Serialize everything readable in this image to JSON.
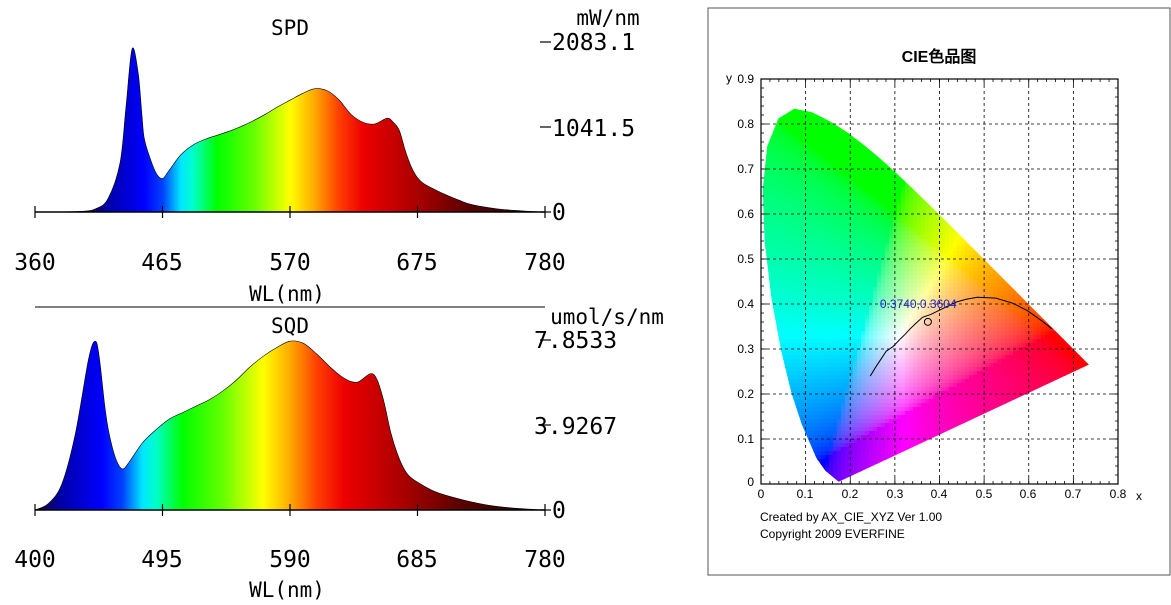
{
  "chart_data": [
    {
      "type": "area",
      "title": "SPD",
      "unit": "mW/nm",
      "xlabel": "WL(nm)",
      "xlim": [
        360,
        780
      ],
      "x_ticks": [
        "360",
        "465",
        "570",
        "675",
        "780"
      ],
      "ylim": [
        0,
        2083.1
      ],
      "y_ticks": [
        "2083.1",
        "1041.5",
        "0"
      ],
      "x": [
        360,
        380,
        400,
        410,
        420,
        430,
        435,
        440,
        445,
        448,
        450,
        455,
        460,
        465,
        470,
        480,
        490,
        500,
        510,
        520,
        530,
        540,
        550,
        560,
        570,
        580,
        590,
        600,
        610,
        620,
        630,
        640,
        650,
        655,
        660,
        665,
        670,
        675,
        680,
        690,
        700,
        710,
        720,
        740,
        760,
        780
      ],
      "values": [
        0,
        2,
        10,
        40,
        160,
        600,
        1300,
        2000,
        1700,
        1200,
        900,
        650,
        470,
        410,
        500,
        700,
        820,
        890,
        940,
        990,
        1050,
        1120,
        1200,
        1290,
        1370,
        1450,
        1510,
        1490,
        1380,
        1200,
        1100,
        1080,
        1150,
        1100,
        1000,
        750,
        550,
        420,
        350,
        270,
        200,
        140,
        90,
        40,
        15,
        0
      ],
      "spectrum_colors": [
        {
          "nm": 400,
          "color": "#1a0033"
        },
        {
          "nm": 420,
          "color": "#0000aa"
        },
        {
          "nm": 450,
          "color": "#0000ff"
        },
        {
          "nm": 465,
          "color": "#0040ff"
        },
        {
          "nm": 480,
          "color": "#00e5ff"
        },
        {
          "nm": 490,
          "color": "#00ffcc"
        },
        {
          "nm": 510,
          "color": "#00ff00"
        },
        {
          "nm": 540,
          "color": "#66ff00"
        },
        {
          "nm": 570,
          "color": "#ffff00"
        },
        {
          "nm": 590,
          "color": "#ffaa00"
        },
        {
          "nm": 610,
          "color": "#ff4000"
        },
        {
          "nm": 630,
          "color": "#ee0000"
        },
        {
          "nm": 680,
          "color": "#a00000"
        },
        {
          "nm": 720,
          "color": "#550000"
        },
        {
          "nm": 780,
          "color": "#200000"
        }
      ]
    },
    {
      "type": "area",
      "title": "SQD",
      "unit": "umol/s/nm",
      "xlabel": "WL(nm)",
      "xlim": [
        400,
        780
      ],
      "x_ticks": [
        "400",
        "495",
        "590",
        "685",
        "780"
      ],
      "ylim": [
        0,
        7.8533
      ],
      "y_ticks": [
        "7.8533",
        "3.9267",
        "0"
      ],
      "x": [
        400,
        410,
        420,
        430,
        440,
        445,
        448,
        452,
        455,
        460,
        465,
        470,
        480,
        490,
        500,
        510,
        520,
        530,
        540,
        550,
        560,
        570,
        580,
        590,
        600,
        610,
        620,
        630,
        640,
        650,
        655,
        660,
        665,
        670,
        675,
        680,
        690,
        700,
        720,
        740,
        760,
        780
      ],
      "values": [
        0,
        0.3,
        1.2,
        3.5,
        7.0,
        7.8,
        7.0,
        4.8,
        3.6,
        2.4,
        1.9,
        2.2,
        3.1,
        3.7,
        4.2,
        4.5,
        4.8,
        5.1,
        5.5,
        6.0,
        6.6,
        7.1,
        7.5,
        7.8,
        7.7,
        7.2,
        6.6,
        6.1,
        5.9,
        6.3,
        6.0,
        5.0,
        3.6,
        2.6,
        1.9,
        1.5,
        1.1,
        0.8,
        0.45,
        0.2,
        0.07,
        0
      ],
      "spectrum_colors": [
        {
          "nm": 400,
          "color": "#1a0033"
        },
        {
          "nm": 420,
          "color": "#0000aa"
        },
        {
          "nm": 450,
          "color": "#0000ff"
        },
        {
          "nm": 465,
          "color": "#0040ff"
        },
        {
          "nm": 480,
          "color": "#00e5ff"
        },
        {
          "nm": 490,
          "color": "#00ffcc"
        },
        {
          "nm": 510,
          "color": "#00ff00"
        },
        {
          "nm": 540,
          "color": "#66ff00"
        },
        {
          "nm": 570,
          "color": "#ffff00"
        },
        {
          "nm": 590,
          "color": "#ffaa00"
        },
        {
          "nm": 610,
          "color": "#ff4000"
        },
        {
          "nm": 630,
          "color": "#ee0000"
        },
        {
          "nm": 680,
          "color": "#a00000"
        },
        {
          "nm": 720,
          "color": "#550000"
        },
        {
          "nm": 780,
          "color": "#200000"
        }
      ]
    },
    {
      "type": "scatter",
      "title": "CIE色品图",
      "xlabel": "x",
      "ylabel": "y",
      "xlim": [
        0,
        0.8
      ],
      "ylim": [
        0,
        0.9
      ],
      "x_ticks": [
        "0",
        "0.1",
        "0.2",
        "0.3",
        "0.4",
        "0.5",
        "0.6",
        "0.7",
        "0.8"
      ],
      "y_ticks": [
        "0.9",
        "0.8",
        "0.7",
        "0.6",
        "0.5",
        "0.4",
        "0.3",
        "0.2",
        "0.1",
        "0"
      ],
      "grid": true,
      "spectral_locus": [
        [
          0.1741,
          0.005
        ],
        [
          0.144,
          0.0297
        ],
        [
          0.1241,
          0.0578
        ],
        [
          0.0913,
          0.1327
        ],
        [
          0.0687,
          0.2007
        ],
        [
          0.0454,
          0.295
        ],
        [
          0.0235,
          0.4127
        ],
        [
          0.0082,
          0.5384
        ],
        [
          0.0039,
          0.6548
        ],
        [
          0.0139,
          0.7502
        ],
        [
          0.0389,
          0.812
        ],
        [
          0.0743,
          0.8338
        ],
        [
          0.1142,
          0.8262
        ],
        [
          0.1547,
          0.8059
        ],
        [
          0.1929,
          0.7816
        ],
        [
          0.2296,
          0.7543
        ],
        [
          0.2658,
          0.7243
        ],
        [
          0.3016,
          0.6923
        ],
        [
          0.3373,
          0.6589
        ],
        [
          0.3731,
          0.6245
        ],
        [
          0.4087,
          0.5896
        ],
        [
          0.4441,
          0.5547
        ],
        [
          0.4788,
          0.5202
        ],
        [
          0.5125,
          0.4866
        ],
        [
          0.5448,
          0.4544
        ],
        [
          0.5752,
          0.4242
        ],
        [
          0.6029,
          0.3965
        ],
        [
          0.627,
          0.3725
        ],
        [
          0.6482,
          0.3514
        ],
        [
          0.6658,
          0.334
        ],
        [
          0.6801,
          0.3197
        ],
        [
          0.6915,
          0.3083
        ],
        [
          0.7006,
          0.2993
        ],
        [
          0.7079,
          0.292
        ],
        [
          0.714,
          0.2859
        ],
        [
          0.7347,
          0.2653
        ]
      ],
      "planckian_locus": [
        [
          0.2448,
          0.2398
        ],
        [
          0.2565,
          0.259
        ],
        [
          0.2697,
          0.2788
        ],
        [
          0.2807,
          0.2952
        ],
        [
          0.2952,
          0.3048
        ],
        [
          0.3135,
          0.3237
        ],
        [
          0.3221,
          0.3318
        ],
        [
          0.3326,
          0.3432
        ],
        [
          0.3457,
          0.3559
        ],
        [
          0.3619,
          0.3705
        ],
        [
          0.3805,
          0.3768
        ],
        [
          0.4103,
          0.3913
        ],
        [
          0.4369,
          0.4041
        ],
        [
          0.4598,
          0.4106
        ],
        [
          0.485,
          0.415
        ],
        [
          0.5263,
          0.413
        ],
        [
          0.5647,
          0.4015
        ],
        [
          0.5981,
          0.3846
        ],
        [
          0.6302,
          0.3618
        ],
        [
          0.6522,
          0.3449
        ]
      ],
      "point": {
        "x": 0.374,
        "y": 0.3604
      },
      "point_label": "0.3740,0.3604",
      "footer_lines": [
        "Created by AX_CIE_XYZ Ver 1.00",
        "Copyright 2009 EVERFINE"
      ]
    }
  ]
}
